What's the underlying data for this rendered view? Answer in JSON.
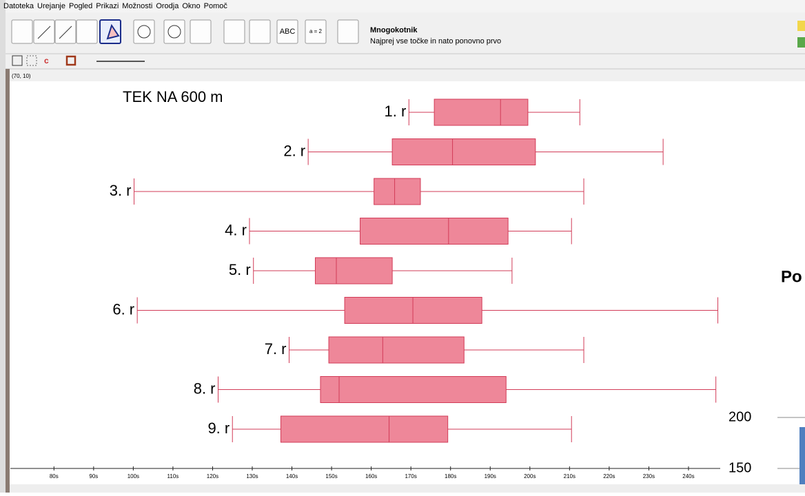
{
  "menu": [
    "Datoteka",
    "Urejanje",
    "Pogled",
    "Prikazi",
    "Možnosti",
    "Orodja",
    "Okno",
    "Pomoč"
  ],
  "toolbar": {
    "tool_texts": [
      "ABC",
      "a = 2"
    ],
    "tool_name": "Mnogokotnik",
    "tool_help": "Najprej vse točke in nato ponovno prvo"
  },
  "coords": "(70, 10)",
  "chart_data": {
    "type": "boxplot",
    "title": "TEK NA 600 m",
    "categories": [
      "1. r",
      "2. r",
      "3. r",
      "4. r",
      "5. r",
      "6. r",
      "7. r",
      "8. r",
      "9. r"
    ],
    "series": [
      {
        "color": "#ee8799",
        "min": [
          169.5,
          144.1,
          100.2,
          129.3,
          130.3,
          101.0,
          139.3,
          121.4,
          125.0
        ],
        "q1": [
          175.9,
          165.3,
          160.7,
          157.2,
          145.9,
          153.3,
          149.3,
          147.2,
          137.2
        ],
        "median": [
          192.6,
          180.5,
          165.9,
          179.5,
          151.2,
          170.5,
          162.9,
          151.9,
          164.5
        ],
        "q3": [
          199.5,
          201.4,
          172.4,
          194.5,
          165.3,
          187.9,
          183.4,
          194.0,
          179.3
        ],
        "max": [
          212.6,
          233.6,
          213.6,
          210.5,
          195.5,
          247.4,
          213.6,
          246.9,
          210.5
        ]
      }
    ],
    "xlim": [
      69,
      248
    ],
    "xticks": [
      {
        "value": 80,
        "label": "80s"
      },
      {
        "value": 90,
        "label": "90s"
      },
      {
        "value": 100,
        "label": "100s"
      },
      {
        "value": 110,
        "label": "110s"
      },
      {
        "value": 120,
        "label": "120s"
      },
      {
        "value": 130,
        "label": "130s"
      },
      {
        "value": 140,
        "label": "140s"
      },
      {
        "value": 150,
        "label": "150s"
      },
      {
        "value": 160,
        "label": "160s"
      },
      {
        "value": 170,
        "label": "170s"
      },
      {
        "value": 180,
        "label": "180s"
      },
      {
        "value": 190,
        "label": "190s"
      },
      {
        "value": 200,
        "label": "200s"
      },
      {
        "value": 210,
        "label": "210s"
      },
      {
        "value": 220,
        "label": "220s"
      },
      {
        "value": 230,
        "label": "230s"
      },
      {
        "value": 240,
        "label": "240s"
      }
    ]
  },
  "side": {
    "title": "Po",
    "ticks": [
      "200",
      "150"
    ]
  }
}
